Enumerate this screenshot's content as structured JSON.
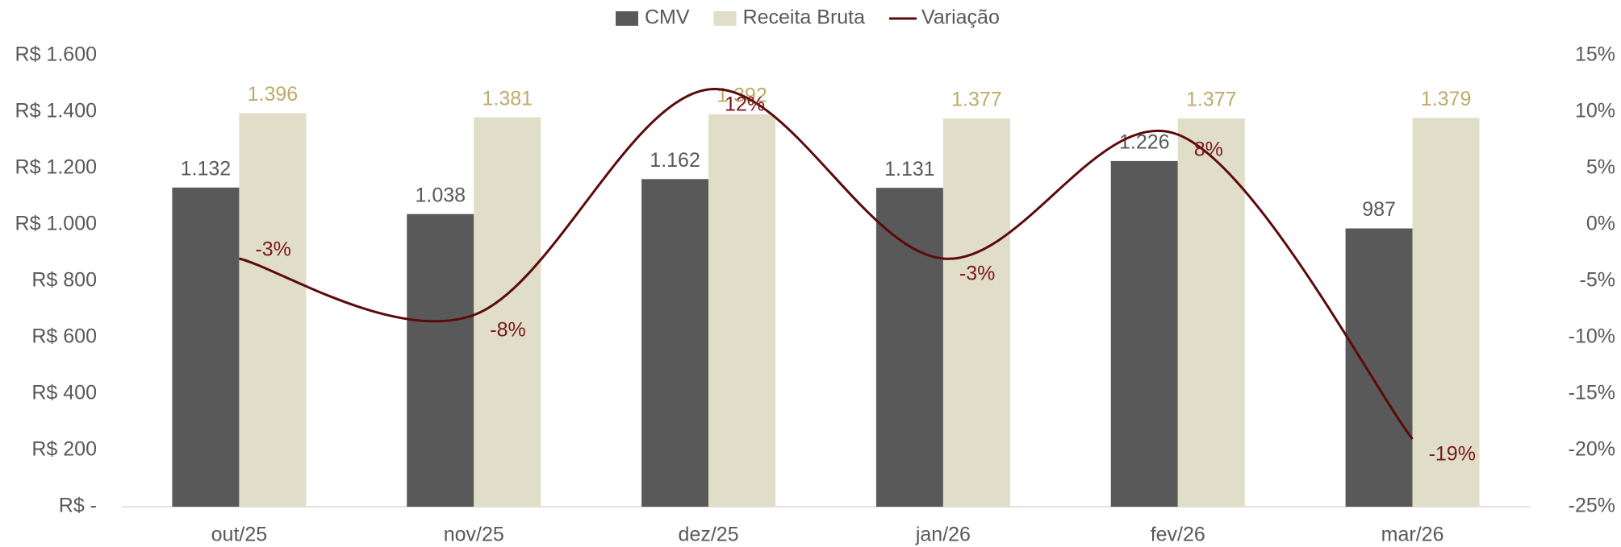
{
  "chart_data": {
    "type": "bar",
    "categories": [
      "out/25",
      "nov/25",
      "dez/25",
      "jan/26",
      "fev/26",
      "mar/26"
    ],
    "series": [
      {
        "name": "CMV",
        "color": "#595959",
        "values": [
          1132,
          1038,
          1162,
          1131,
          1226,
          987
        ],
        "value_labels": [
          "1.132",
          "1.038",
          "1.162",
          "1.131",
          "1.226",
          "987"
        ]
      },
      {
        "name": "Receita Bruta",
        "color": "#e0ddc8",
        "values": [
          1396,
          1381,
          1392,
          1377,
          1377,
          1379
        ],
        "value_labels": [
          "1.396",
          "1.381",
          "1.392",
          "1.377",
          "1.377",
          "1.379"
        ]
      },
      {
        "name": "Variação",
        "type": "line",
        "axis": "y2",
        "color": "#5c0a0a",
        "values": [
          -3,
          -8,
          12,
          -3,
          8,
          -19
        ],
        "value_labels": [
          "-3%",
          "-8%",
          "12%",
          "-3%",
          "8%",
          "-19%"
        ]
      }
    ],
    "ylim": [
      0,
      1600
    ],
    "yticks": [
      {
        "value": 0,
        "label": "R$ -"
      },
      {
        "value": 200,
        "label": "R$ 200"
      },
      {
        "value": 400,
        "label": "R$ 400"
      },
      {
        "value": 600,
        "label": "R$ 600"
      },
      {
        "value": 800,
        "label": "R$ 800"
      },
      {
        "value": 1000,
        "label": "R$ 1.000"
      },
      {
        "value": 1200,
        "label": "R$ 1.200"
      },
      {
        "value": 1400,
        "label": "R$ 1.400"
      },
      {
        "value": 1600,
        "label": "R$ 1.600"
      }
    ],
    "y2lim": [
      -25,
      15
    ],
    "y2ticks": [
      {
        "value": -25,
        "label": "-25%"
      },
      {
        "value": -20,
        "label": "-20%"
      },
      {
        "value": -15,
        "label": "-15%"
      },
      {
        "value": -10,
        "label": "-10%"
      },
      {
        "value": -5,
        "label": "-5%"
      },
      {
        "value": 0,
        "label": "0%"
      },
      {
        "value": 5,
        "label": "5%"
      },
      {
        "value": 10,
        "label": "10%"
      },
      {
        "value": 15,
        "label": "15%"
      }
    ],
    "legend": "top"
  }
}
